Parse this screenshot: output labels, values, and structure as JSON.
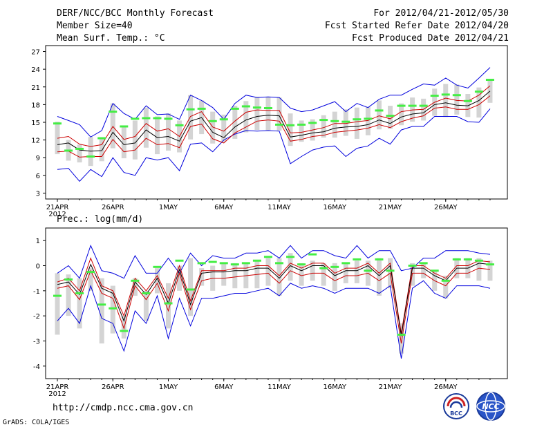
{
  "header": {
    "title": "DERF/NCC/BCC Monthly Forecast",
    "member": "Member Size=40",
    "variable": "Mean Surf. Temp.: °C",
    "period": "For 2012/04/21-2012/05/30",
    "started": "Fcst Started Refer Date 2012/04/20",
    "produced": "Fcst Produced Date 2012/04/21"
  },
  "footer": {
    "url": "http://cmdp.ncc.cma.gov.cn",
    "credit": "GrADS: COLA/IGES",
    "logo_bcc": "BCC",
    "logo_ncc": "NCC"
  },
  "colors": {
    "envelope": "#0000dd",
    "spread": "#cc0000",
    "mean": "#000000",
    "box": "#d4d4d4",
    "obs": "#44ee44"
  },
  "chart_data": [
    {
      "type": "line",
      "title": "Mean Surf. Temp.: °C",
      "ylim": [
        2,
        28
      ],
      "yticks": [
        3,
        6,
        9,
        12,
        15,
        18,
        21,
        24,
        27
      ],
      "xlabels": [
        "21APR",
        "26APR",
        "1MAY",
        "6MAY",
        "11MAY",
        "16MAY",
        "21MAY",
        "26MAY"
      ],
      "xyear": "2012",
      "days": 40,
      "series": [
        {
          "name": "max",
          "values": [
            16,
            15.3,
            14.6,
            12.5,
            13.6,
            18.2,
            16.5,
            15.5,
            17.8,
            16.3,
            16.4,
            15.5,
            19.6,
            18.7,
            17.5,
            15.5,
            18.2,
            19.6,
            19.2,
            19.3,
            19.2,
            17.4,
            16.8,
            17.1,
            17.8,
            18.5,
            16.8,
            18.2,
            17.5,
            18.9,
            19.6,
            19.6,
            20.6,
            21.5,
            21.3,
            22.5,
            21.3,
            20.8,
            22.5,
            24.3
          ]
        },
        {
          "name": "p75",
          "values": [
            12.3,
            12.6,
            11.3,
            10.9,
            11.2,
            14.3,
            12.1,
            12.6,
            14.8,
            13.5,
            13.9,
            12.6,
            16,
            16.8,
            14.2,
            13.5,
            15.2,
            16.7,
            17.1,
            17,
            17,
            13.2,
            13.3,
            13.7,
            14.1,
            14.8,
            14.8,
            15.1,
            15.3,
            16.1,
            15.6,
            16.8,
            17.1,
            17.2,
            18.4,
            19.1,
            18.7,
            18.6,
            19.6,
            21.2
          ]
        },
        {
          "name": "mean",
          "values": [
            11.2,
            11.5,
            10.3,
            10.1,
            10.2,
            13.3,
            11.2,
            11.5,
            13.7,
            12.4,
            12.6,
            11.8,
            15.2,
            15.8,
            13.3,
            12.4,
            14.2,
            15.4,
            16,
            16.2,
            16.1,
            12.5,
            12.8,
            13.2,
            13.4,
            14,
            14.2,
            14.3,
            14.6,
            15.4,
            14.8,
            15.9,
            16.4,
            16.6,
            18,
            18.3,
            17.9,
            17.8,
            18.7,
            20.3
          ]
        },
        {
          "name": "p25",
          "values": [
            10,
            10.1,
            9.1,
            9.2,
            9.2,
            12.1,
            10,
            10.3,
            12.3,
            11.2,
            11.4,
            10.7,
            14.3,
            14.7,
            12.2,
            11.5,
            13.2,
            14.2,
            15.2,
            15.4,
            15.2,
            11.8,
            12.1,
            12.6,
            12.8,
            13.3,
            13.5,
            13.7,
            14,
            14.6,
            14.1,
            15.1,
            15.7,
            16.1,
            17.4,
            17.6,
            17.2,
            17.2,
            18,
            19.5
          ]
        },
        {
          "name": "min",
          "values": [
            7,
            7.2,
            5,
            7,
            5.8,
            9,
            6.5,
            6,
            9,
            8.6,
            9,
            6.8,
            11.3,
            11.5,
            10,
            12,
            13,
            13.6,
            13.5,
            13.6,
            13.5,
            8,
            9.2,
            10.3,
            10.8,
            11,
            9.2,
            10.6,
            11,
            12.3,
            11.3,
            13.7,
            14.3,
            14.3,
            16,
            16,
            16,
            15.1,
            15,
            17.3
          ]
        },
        {
          "name": "box_top",
          "values": [
            15.1,
            12,
            11.2,
            12.5,
            12.3,
            18.2,
            14.3,
            15.3,
            17.5,
            16,
            16.5,
            15.3,
            19.6,
            18.7,
            16.8,
            16.3,
            17.8,
            18.6,
            19.3,
            19.3,
            19.2,
            16.5,
            15.3,
            15.5,
            16.2,
            16.8,
            17.2,
            17.5,
            17.6,
            18.7,
            17.8,
            18.2,
            19.2,
            19,
            20.7,
            21.5,
            21.4,
            19.8,
            20.9,
            22.3
          ]
        },
        {
          "name": "box_bottom",
          "values": [
            9.6,
            8.5,
            8.2,
            7.6,
            8.4,
            10.6,
            8.9,
            8.7,
            10.7,
            9.6,
            10.2,
            9.9,
            12.1,
            13,
            11.4,
            11.7,
            12.2,
            13.3,
            13.7,
            13.6,
            13.6,
            11,
            11.7,
            11.9,
            12.4,
            12.4,
            12.7,
            12.2,
            12.8,
            13.8,
            13.9,
            14.5,
            15.1,
            15.3,
            16.1,
            15.9,
            16.3,
            15.9,
            15.8,
            18.3
          ]
        },
        {
          "name": "observed",
          "values": [
            14.8,
            10.2,
            10.5,
            9.2,
            12.3,
            16.8,
            14.3,
            15.6,
            15.7,
            15.7,
            15.6,
            14.5,
            17.2,
            17.3,
            15.2,
            15.5,
            17.3,
            17.7,
            17.5,
            17.4,
            14.6,
            14.5,
            14.6,
            14.9,
            15.4,
            15.2,
            15.1,
            15.5,
            15.6,
            17,
            16.1,
            17.8,
            17.8,
            17.8,
            19.5,
            19.7,
            19.6,
            18.6,
            20.2,
            22.2
          ]
        }
      ]
    },
    {
      "type": "line",
      "title": "Prec.: log(mm/d)",
      "ylim": [
        -4.5,
        1.5
      ],
      "yticks": [
        -4,
        -3,
        -2,
        -1,
        0,
        1
      ],
      "xlabels": [
        "21APR",
        "26APR",
        "1MAY",
        "6MAY",
        "11MAY",
        "16MAY",
        "21MAY",
        "26MAY"
      ],
      "xyear": "2012",
      "days": 40,
      "series": [
        {
          "name": "max",
          "values": [
            -0.3,
            0,
            -0.5,
            0.8,
            -0.2,
            -0.3,
            -0.5,
            0.4,
            -0.3,
            -0.3,
            0.3,
            -0.3,
            0.5,
            0,
            0.4,
            0.3,
            0.3,
            0.5,
            0.5,
            0.6,
            0.3,
            0.8,
            0.3,
            0.6,
            0.6,
            0.4,
            0.3,
            0.8,
            0.3,
            0.6,
            0.6,
            -0.2,
            -0.1,
            0.3,
            0.3,
            0.6,
            0.6,
            0.6,
            0.5,
            0.45
          ]
        },
        {
          "name": "p75",
          "values": [
            -0.65,
            -0.5,
            -1.0,
            0.3,
            -0.8,
            -1.0,
            -2.0,
            -0.5,
            -1.0,
            -0.4,
            -1.3,
            0,
            -1.4,
            -0.2,
            -0.2,
            -0.2,
            -0.1,
            -0.1,
            0,
            0,
            -0.4,
            0.1,
            -0.1,
            0.1,
            0.1,
            -0.3,
            -0.1,
            -0.1,
            0.1,
            -0.3,
            0.1,
            -2.7,
            0,
            0,
            -0.3,
            -0.5,
            0,
            0,
            0.2,
            0.15
          ]
        },
        {
          "name": "mean",
          "values": [
            -0.75,
            -0.65,
            -1.15,
            0.05,
            -0.9,
            -1.1,
            -2.2,
            -0.65,
            -1.15,
            -0.5,
            -1.5,
            -0.15,
            -1.55,
            -0.3,
            -0.25,
            -0.25,
            -0.2,
            -0.2,
            -0.1,
            -0.1,
            -0.5,
            0,
            -0.2,
            0,
            0,
            -0.4,
            -0.2,
            -0.2,
            0,
            -0.4,
            0,
            -2.8,
            -0.1,
            -0.1,
            -0.4,
            -0.6,
            -0.1,
            -0.1,
            0.1,
            0.05
          ]
        },
        {
          "name": "p25",
          "values": [
            -0.9,
            -0.8,
            -1.35,
            -0.2,
            -1.1,
            -1.3,
            -2.5,
            -0.8,
            -1.35,
            -0.7,
            -1.8,
            -0.3,
            -1.75,
            -0.6,
            -0.5,
            -0.5,
            -0.45,
            -0.4,
            -0.35,
            -0.3,
            -0.7,
            -0.2,
            -0.4,
            -0.3,
            -0.3,
            -0.6,
            -0.4,
            -0.4,
            -0.3,
            -0.6,
            -0.3,
            -3.1,
            -0.3,
            -0.3,
            -0.6,
            -0.8,
            -0.3,
            -0.3,
            -0.1,
            -0.15
          ]
        },
        {
          "name": "min",
          "values": [
            -2.2,
            -1.7,
            -2.3,
            -0.8,
            -2.1,
            -2.3,
            -3.4,
            -1.8,
            -2.3,
            -1.2,
            -2.9,
            -1.3,
            -2.4,
            -1.3,
            -1.3,
            -1.2,
            -1.1,
            -1.1,
            -1,
            -0.9,
            -1.2,
            -0.7,
            -0.9,
            -0.8,
            -0.9,
            -1.1,
            -0.9,
            -0.9,
            -0.9,
            -1.1,
            -0.8,
            -3.7,
            -0.9,
            -0.6,
            -1.1,
            -1.3,
            -0.8,
            -0.8,
            -0.8,
            -0.9
          ]
        },
        {
          "name": "box_top",
          "values": [
            -0.3,
            -0.35,
            -0.5,
            -0.1,
            -0.5,
            -0.8,
            -2,
            -0.5,
            -1,
            -0.1,
            -0.7,
            0,
            0.3,
            -0.1,
            0,
            0.1,
            0.1,
            0.1,
            0.2,
            0.3,
            0.3,
            0.5,
            0.1,
            0.2,
            0.1,
            0.1,
            0.1,
            0.2,
            0.2,
            0.3,
            0.3,
            -2.3,
            0.1,
            0.1,
            -0.2,
            -0.4,
            0.3,
            0.3,
            0.3,
            0.2
          ]
        },
        {
          "name": "box_bottom",
          "values": [
            -2.75,
            -2,
            -2.5,
            -1,
            -3.1,
            -2.7,
            -2.9,
            -1.2,
            -2.2,
            -1.1,
            -2.5,
            -1,
            -2,
            -0.8,
            -1,
            -0.8,
            -0.9,
            -0.9,
            -0.9,
            -0.8,
            -1.2,
            -0.6,
            -0.8,
            -0.6,
            -0.8,
            -1,
            -0.7,
            -0.7,
            -0.8,
            -1.2,
            -0.9,
            -3.5,
            -0.8,
            -0.5,
            -1,
            -1.3,
            -0.5,
            -0.5,
            -0.6,
            -0.6
          ]
        },
        {
          "name": "observed",
          "values": [
            -1.2,
            -0.55,
            -1.1,
            -0.25,
            -1.55,
            -1.7,
            -2.6,
            -0.6,
            -1.1,
            -0.05,
            -1.5,
            0.2,
            -0.95,
            0.1,
            0.15,
            0.1,
            0.05,
            0.1,
            0.2,
            0.35,
            0.1,
            0.35,
            0.05,
            0.45,
            -0.1,
            -0.05,
            0.1,
            0.25,
            -0.2,
            0.25,
            -0.2,
            -2.75,
            0,
            0.1,
            -0.2,
            -0.6,
            0.25,
            0.25,
            0.2,
            0.05
          ]
        }
      ]
    }
  ]
}
